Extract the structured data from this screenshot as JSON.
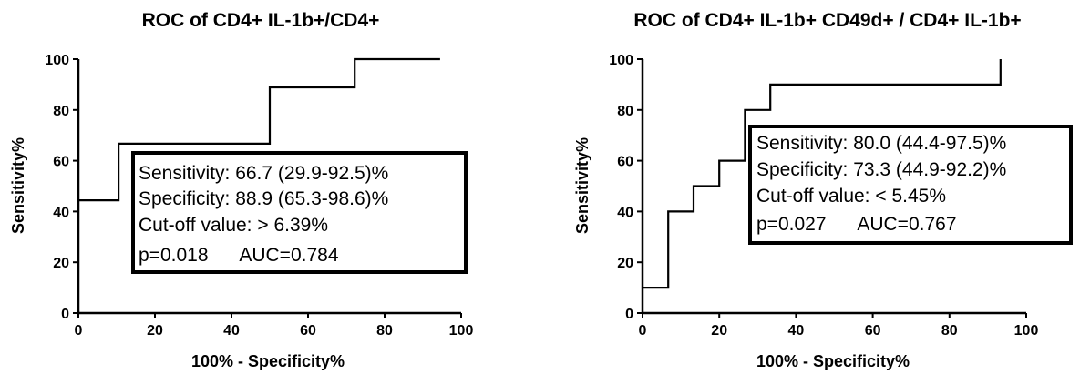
{
  "chart_data": [
    {
      "type": "line",
      "title": "ROC of CD4+ IL-1b+/CD4+",
      "xlabel": "100% - Specificity%",
      "ylabel": "Sensitivity%",
      "xlim": [
        0,
        100
      ],
      "ylim": [
        0,
        100
      ],
      "xticks": [
        "0",
        "20",
        "40",
        "60",
        "80",
        "100"
      ],
      "yticks": [
        "0",
        "20",
        "40",
        "60",
        "80",
        "100"
      ],
      "grid": false,
      "series": [
        {
          "x": [
            0,
            10.5,
            10.5,
            50,
            50,
            72.2,
            72.2,
            94.5
          ],
          "y": [
            44.4,
            44.4,
            66.7,
            66.7,
            88.9,
            88.9,
            100,
            100
          ]
        }
      ],
      "annotation": {
        "position": "center-right",
        "lines": [
          "Sensitivity: 66.7 (29.9-92.5)%",
          "Specificity: 88.9 (65.3-98.6)%",
          "Cut-off value: > 6.39%",
          "p=0.018      AUC=0.784"
        ]
      }
    },
    {
      "type": "line",
      "title": "ROC of CD4+ IL-1b+ CD49d+ / CD4+ IL-1b+",
      "xlabel": "100% - Specificity%",
      "ylabel": "Sensitivity%",
      "xlim": [
        0,
        100
      ],
      "ylim": [
        0,
        100
      ],
      "xticks": [
        "0",
        "20",
        "40",
        "60",
        "80",
        "100"
      ],
      "yticks": [
        "0",
        "20",
        "40",
        "60",
        "80",
        "100"
      ],
      "grid": false,
      "series": [
        {
          "x": [
            0,
            6.7,
            6.7,
            13.3,
            13.3,
            20,
            20,
            26.7,
            26.7,
            33.3,
            33.3,
            93.3,
            93.3
          ],
          "y": [
            10,
            10,
            40,
            40,
            50,
            50,
            60,
            60,
            80,
            80,
            90,
            90,
            100
          ]
        }
      ],
      "annotation": {
        "position": "upper-right",
        "lines": [
          "Sensitivity: 80.0 (44.4-97.5)%",
          "Specificity: 73.3 (44.9-92.2)%",
          "Cut-off value: < 5.45%",
          "p=0.027      AUC=0.767"
        ]
      }
    }
  ]
}
